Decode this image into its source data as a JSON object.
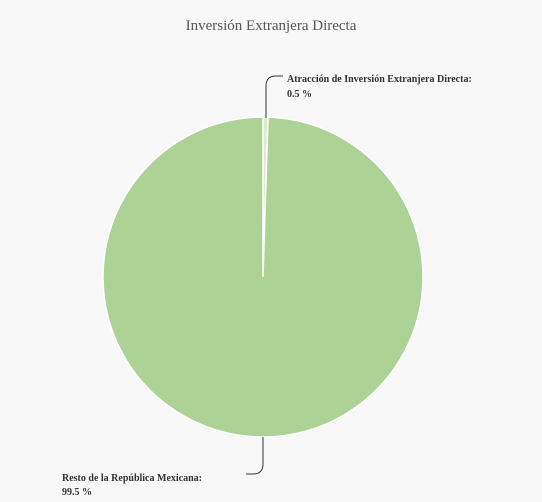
{
  "chart_data": {
    "type": "pie",
    "title": "Inversión Extranjera Directa",
    "slices": [
      {
        "label": "Atracción de Inversión Extranjera Directa",
        "value": 0.5,
        "value_text": "0.5 %",
        "color": "#d8ecd0"
      },
      {
        "label": "Resto de la República Mexicana",
        "value": 99.5,
        "value_text": "99.5 %",
        "color": "#acd296"
      }
    ]
  }
}
